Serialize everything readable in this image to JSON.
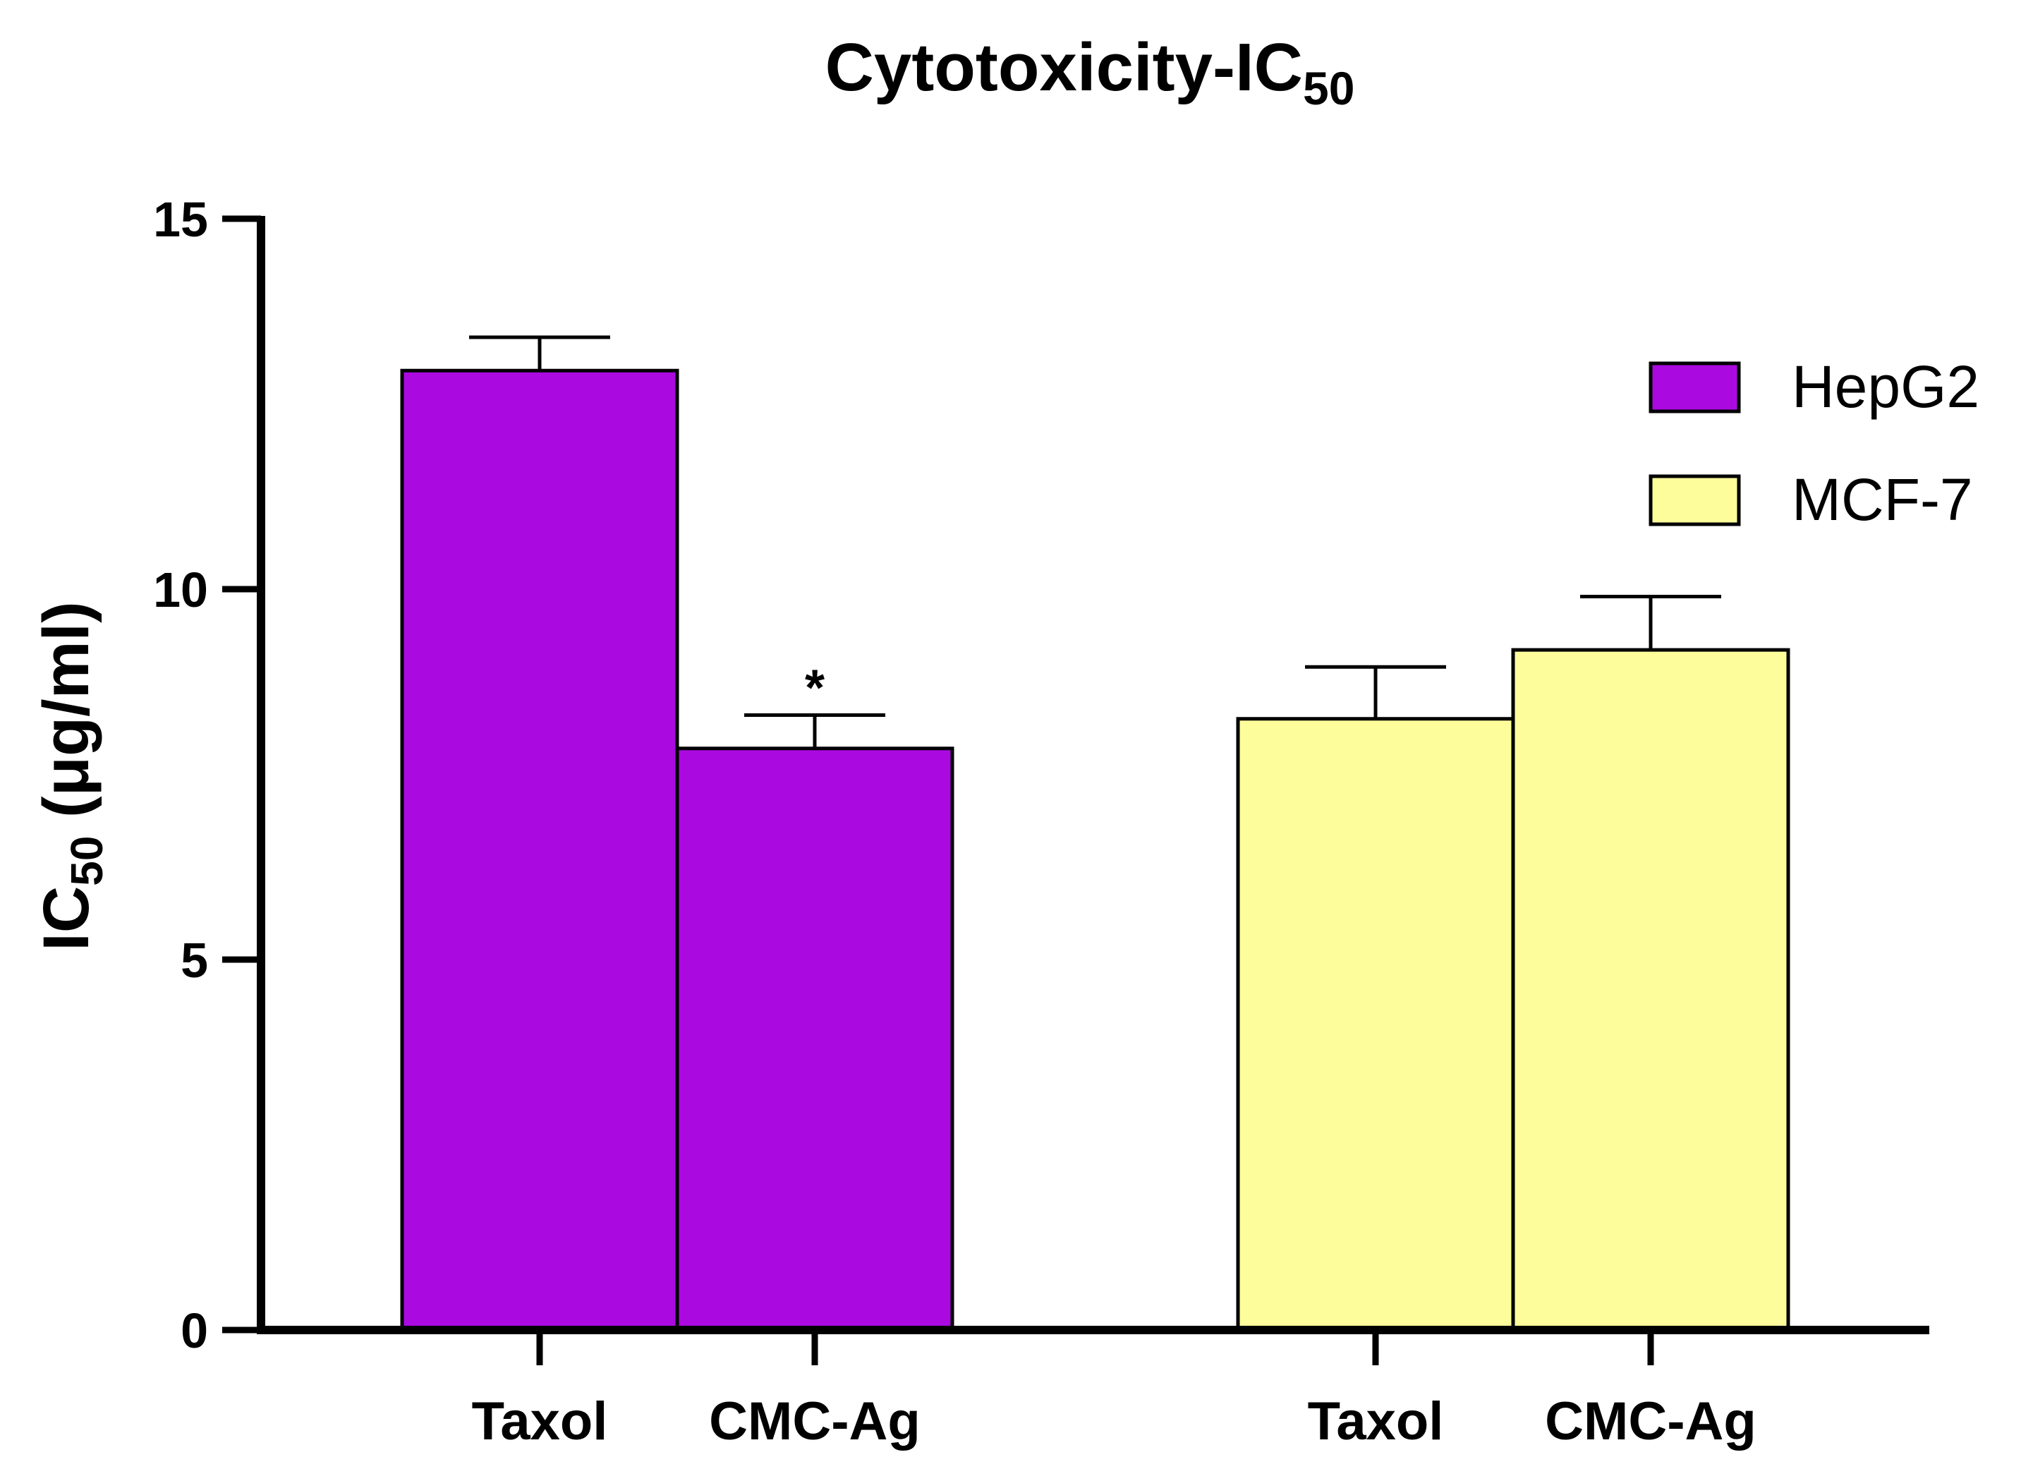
{
  "chart_data": {
    "type": "bar",
    "title": "Cytotoxicity-IC",
    "title_subscript": "50",
    "ylabel": "IC",
    "ylabel_subscript": "50",
    "ylabel_unit": " (μg/ml)",
    "xlabel": "",
    "ylim": [
      0,
      15
    ],
    "yticks": [
      "0",
      "5",
      "10",
      "15"
    ],
    "grid": false,
    "legend_position": "top-right",
    "groups": [
      {
        "series": "HepG2",
        "categories": [
          "Taxol",
          "CMC-Ag"
        ]
      },
      {
        "series": "MCF-7",
        "categories": [
          "Taxol",
          "CMC-Ag"
        ]
      }
    ],
    "series": [
      {
        "name": "HepG2",
        "color": "#aa0ae0",
        "values": [
          12.95,
          7.85
        ],
        "errors": [
          0.45,
          0.45
        ],
        "annotations": [
          "",
          "*"
        ]
      },
      {
        "name": "MCF-7",
        "color": "#fdfd9c",
        "values": [
          8.25,
          9.18
        ],
        "errors": [
          0.7,
          0.72
        ],
        "annotations": [
          "",
          ""
        ]
      }
    ]
  }
}
